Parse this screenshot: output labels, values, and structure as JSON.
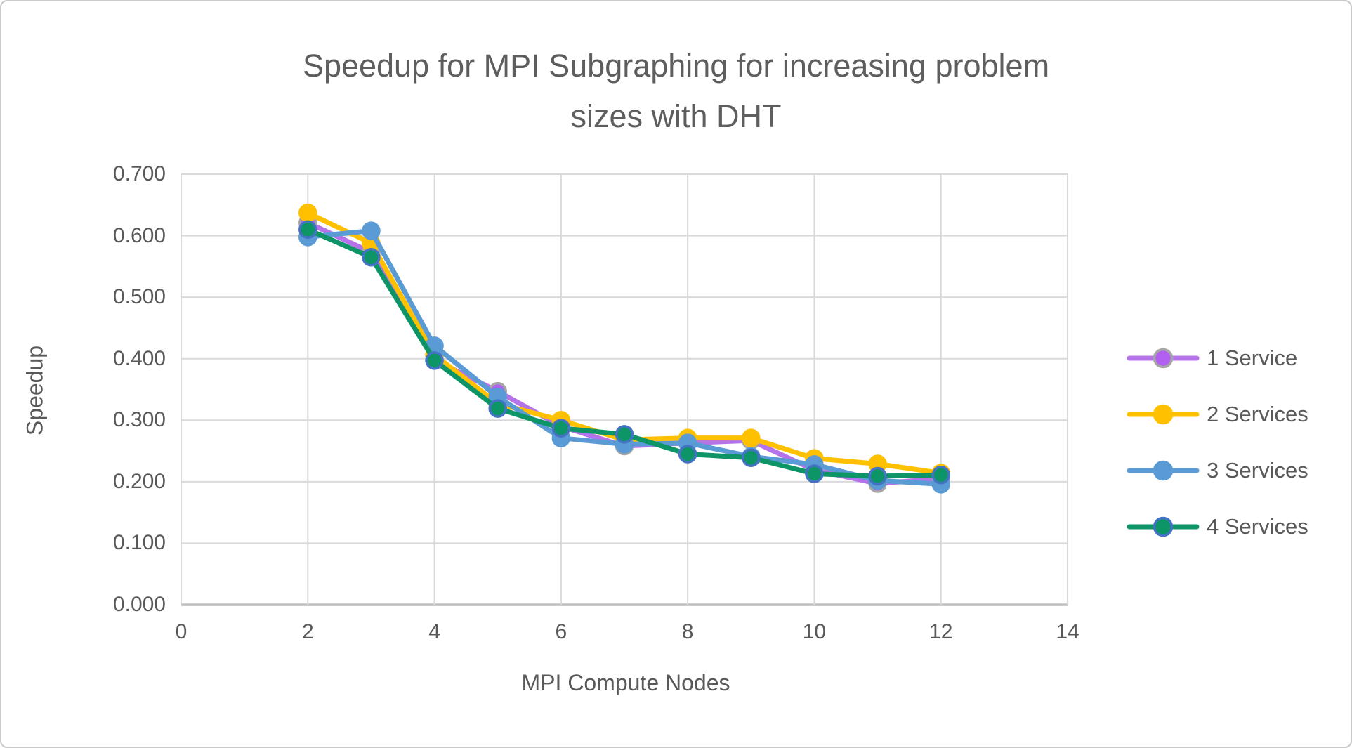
{
  "chart_data": {
    "type": "line",
    "title_line1": "Speedup for MPI Subgraphing for increasing problem",
    "title_line2": "sizes with DHT",
    "xlabel": "MPI Compute Nodes",
    "ylabel": "Speedup",
    "xlim": [
      0,
      14
    ],
    "ylim": [
      0.0,
      0.7
    ],
    "x_ticks": [
      0,
      2,
      4,
      6,
      8,
      10,
      12,
      14
    ],
    "y_ticks": [
      0.0,
      0.1,
      0.2,
      0.3,
      0.4,
      0.5,
      0.6,
      0.7
    ],
    "y_tick_decimals": 3,
    "grid": true,
    "legend_position": "right",
    "x": [
      2,
      3,
      4,
      5,
      6,
      7,
      8,
      9,
      10,
      11,
      12
    ],
    "series": [
      {
        "name": "1 Service",
        "color": "#b573ea",
        "marker_fill": "#b160f0",
        "marker_border": "#a6a6a6",
        "values": [
          0.621,
          0.573,
          0.398,
          0.347,
          0.29,
          0.258,
          0.263,
          0.267,
          0.219,
          0.197,
          0.205
        ]
      },
      {
        "name": "2 Services",
        "color": "#ffc000",
        "marker_fill": "#ffc000",
        "marker_border": "#ffc000",
        "values": [
          0.637,
          0.588,
          0.406,
          0.327,
          0.3,
          0.268,
          0.271,
          0.271,
          0.238,
          0.229,
          0.214
        ]
      },
      {
        "name": "3 Services",
        "color": "#5b9bd5",
        "marker_fill": "#5b9bd5",
        "marker_border": "#5b9bd5",
        "values": [
          0.598,
          0.608,
          0.421,
          0.338,
          0.271,
          0.261,
          0.263,
          0.241,
          0.228,
          0.202,
          0.196
        ]
      },
      {
        "name": "4 Services",
        "color": "#0d9568",
        "marker_fill": "#0d9568",
        "marker_border": "#4472c4",
        "values": [
          0.61,
          0.565,
          0.397,
          0.319,
          0.287,
          0.277,
          0.245,
          0.239,
          0.213,
          0.209,
          0.211
        ]
      }
    ],
    "colors": {
      "grid": "#d9d9d9",
      "axis": "#bfbfbf",
      "text": "#595959",
      "background": "#ffffff",
      "frame_border": "#c9c9c9"
    }
  }
}
